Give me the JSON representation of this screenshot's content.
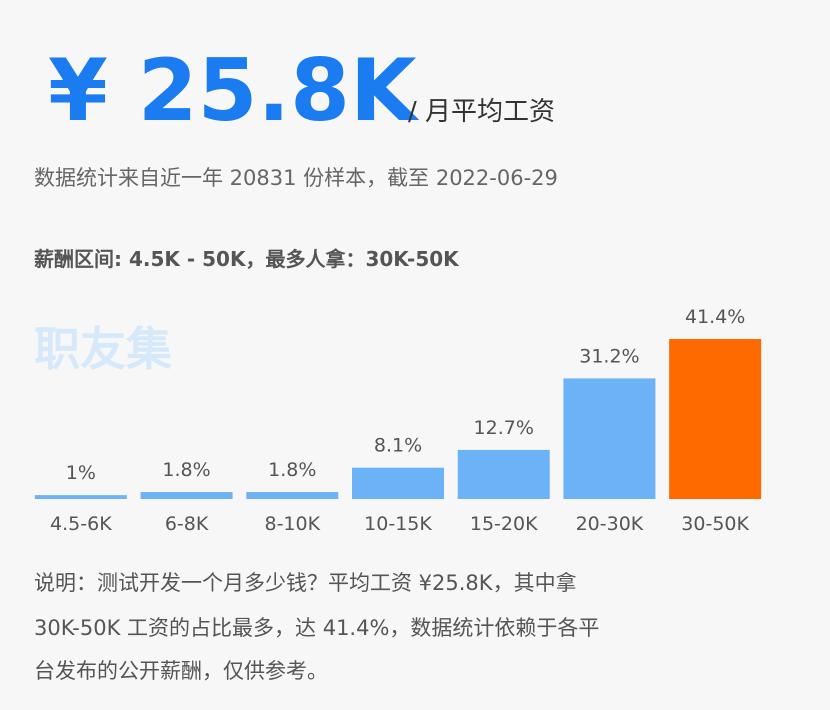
{
  "header": {
    "amount": "¥ 25.8K",
    "unit": "/ 月平均工资",
    "source": "数据统计来自近一年 20831 份样本，截至 2022-06-29",
    "range": "薪酬区间: 4.5K - 50K，最多人拿：30K-50K",
    "watermark": "职友集"
  },
  "chart_data": {
    "type": "bar",
    "categories": [
      "4.5-6K",
      "6-8K",
      "8-10K",
      "10-15K",
      "15-20K",
      "20-30K",
      "30-50K"
    ],
    "values": [
      1,
      1.8,
      1.8,
      8.1,
      12.7,
      31.2,
      41.4
    ],
    "value_labels": [
      "1%",
      "1.8%",
      "1.8%",
      "8.1%",
      "12.7%",
      "31.2%",
      "41.4%"
    ],
    "colors": [
      "#6cb2f7",
      "#6cb2f7",
      "#6cb2f7",
      "#6cb2f7",
      "#6cb2f7",
      "#6cb2f7",
      "#ff6a00"
    ]
  },
  "note": [
    "说明：测试开发一个月多少钱？平均工资 ¥25.8K，其中拿",
    "30K-50K 工资的占比最多，达 41.4%，数据统计依赖于各平",
    "台发布的公开薪酬，仅供参考。"
  ]
}
